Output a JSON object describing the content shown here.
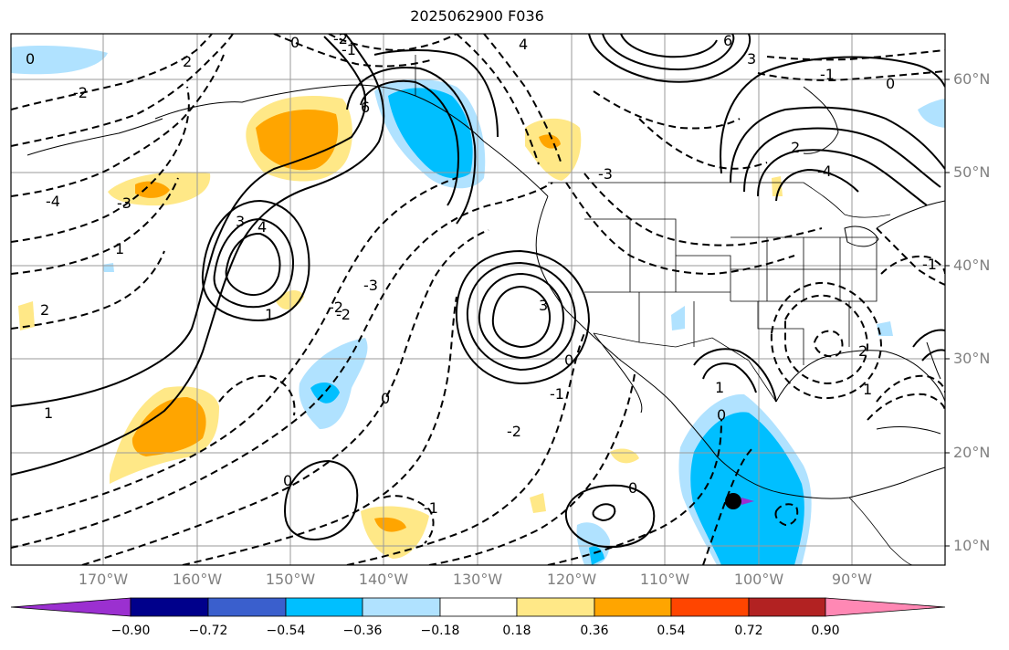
{
  "title": "2025062900 F036",
  "map": {
    "projection": "equirectangular",
    "lon_range": [
      "180°W (approx)",
      "80°W"
    ],
    "lat_range": [
      "8°N",
      "65°N"
    ],
    "lon_labels": [
      "170°W",
      "160°W",
      "150°W",
      "140°W",
      "130°W",
      "120°W",
      "110°W",
      "100°W",
      "90°W"
    ],
    "lat_labels": [
      "60°N",
      "50°N",
      "40°N",
      "30°N",
      "20°N",
      "10°N"
    ],
    "contour_labels": [
      "0",
      "-2",
      "2",
      "1",
      "6",
      "0",
      "-1",
      "-2",
      "4",
      "-3",
      "1",
      "3",
      "-4",
      "3",
      "-1",
      "0",
      "-2",
      "2",
      "-4",
      "6",
      "3",
      "0",
      "-1",
      "4",
      "-3",
      "2",
      "1",
      "-1",
      "0",
      "-2",
      "-3",
      "0",
      "1",
      "-2",
      "0",
      "1",
      "2",
      "0",
      "-1"
    ],
    "marker": "black-dot"
  },
  "colorbar": {
    "ticks": [
      "−0.90",
      "−0.72",
      "−0.54",
      "−0.36",
      "−0.18",
      "0.18",
      "0.36",
      "0.54",
      "0.72",
      "0.90"
    ],
    "colors": [
      "#9b30d0",
      "#00008b",
      "#3a5fcd",
      "#00bfff",
      "#b0e2ff",
      "#ffffff",
      "#ffe887",
      "#ffa500",
      "#ff4500",
      "#b22222",
      "#ff88b4"
    ]
  }
}
